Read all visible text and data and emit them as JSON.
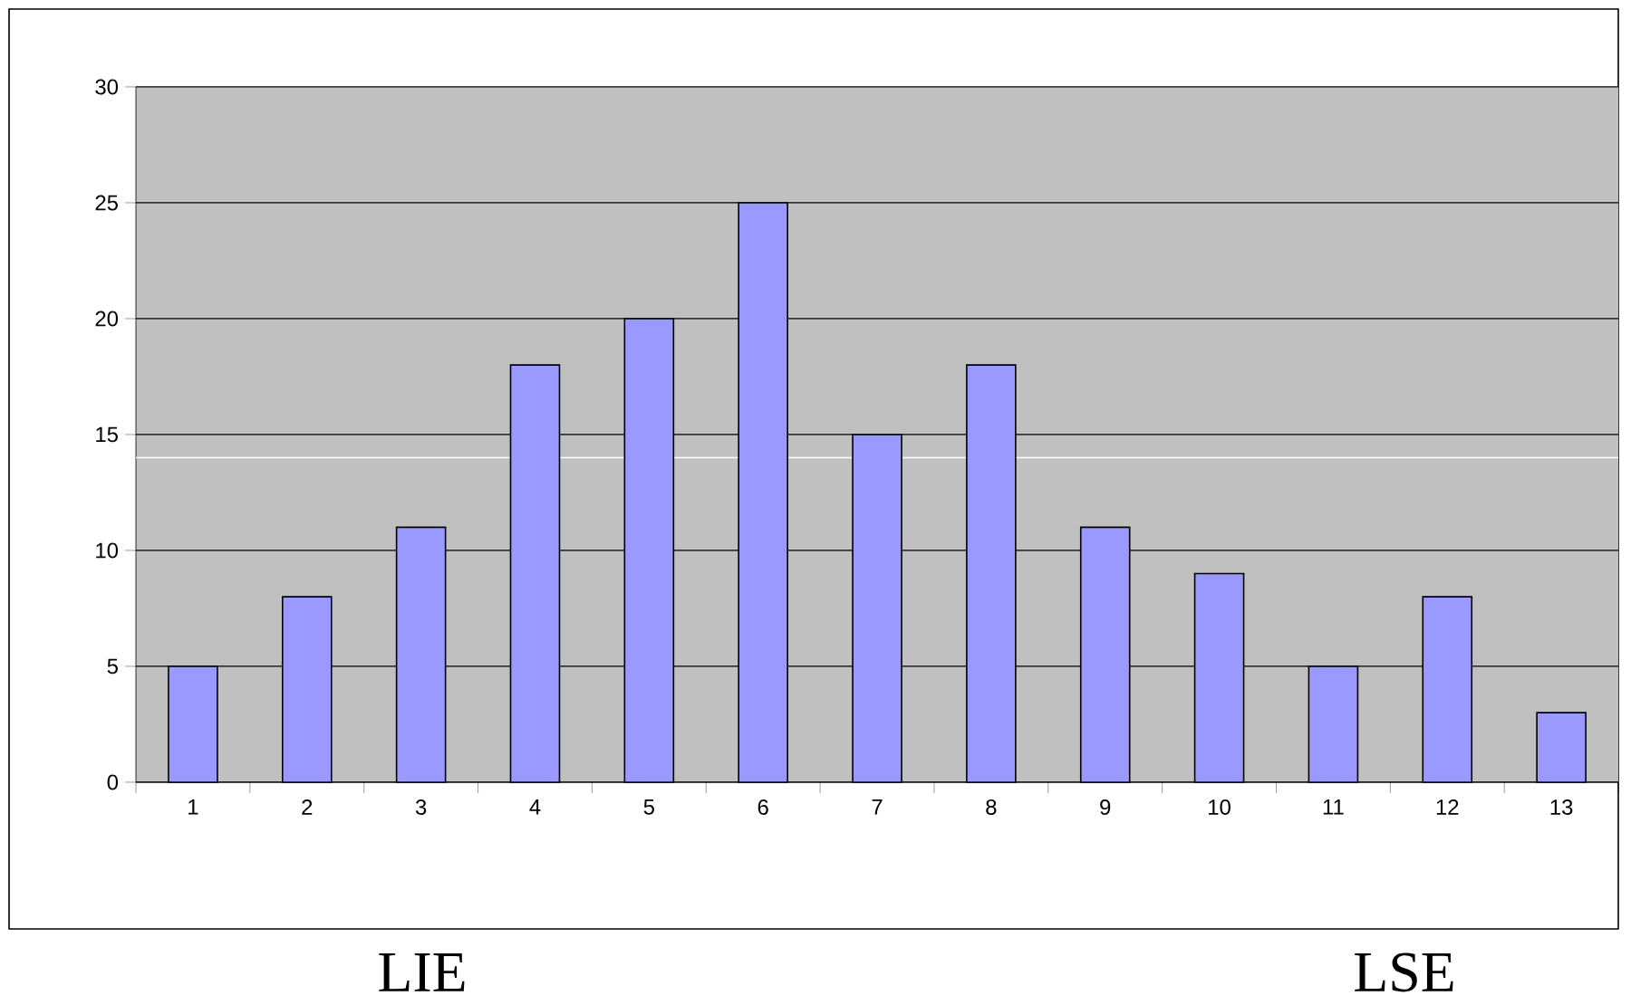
{
  "chart_data": {
    "type": "bar",
    "categories": [
      "1",
      "2",
      "3",
      "4",
      "5",
      "6",
      "7",
      "8",
      "9",
      "10",
      "11",
      "12",
      "13"
    ],
    "values": [
      5,
      8,
      11,
      18,
      20,
      25,
      15,
      18,
      11,
      9,
      5,
      8,
      3
    ],
    "color": "#9999ff",
    "ylim": [
      0,
      30
    ],
    "yticks": [
      0,
      5,
      10,
      15,
      20,
      25,
      30
    ],
    "grid": "y",
    "ref_lines": [
      {
        "axis": "y",
        "value": 14,
        "color": "#ffffff"
      }
    ],
    "annotations": [
      "LIE",
      "LSE"
    ]
  }
}
